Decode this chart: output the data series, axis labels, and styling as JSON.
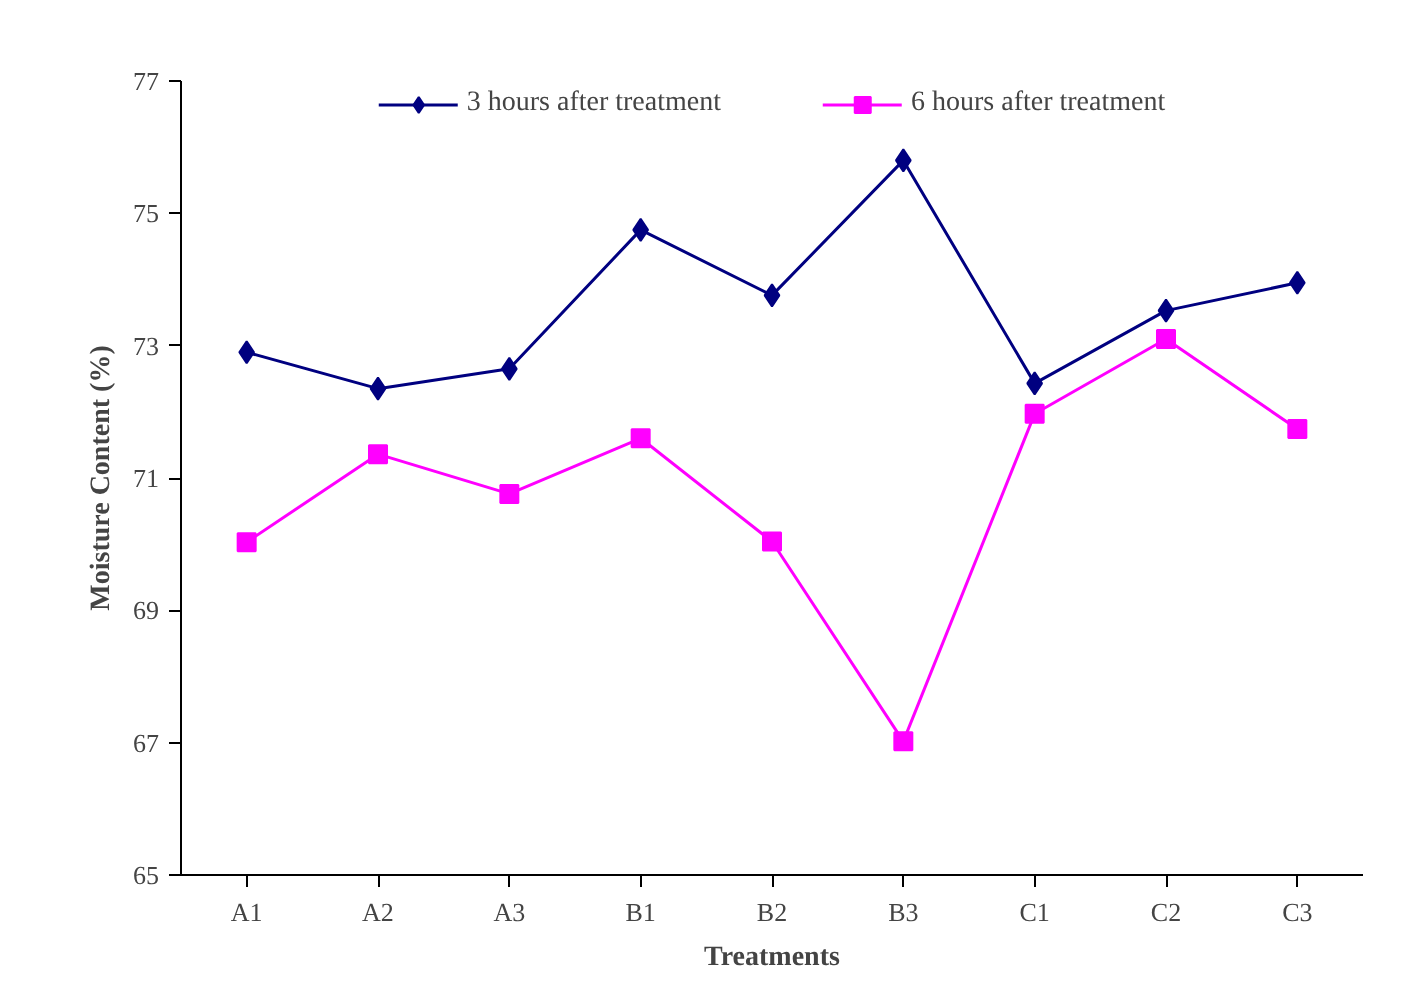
{
  "chart_data": {
    "type": "line",
    "xlabel": "Treatments",
    "ylabel": "Moisture Content (%)",
    "categories": [
      "A1",
      "A2",
      "A3",
      "B1",
      "B2",
      "B3",
      "C1",
      "C2",
      "C3"
    ],
    "series": [
      {
        "name": "3 hours after treatment",
        "color": "#000080",
        "marker": "diamond",
        "values": [
          72.9,
          72.35,
          72.65,
          74.75,
          73.76,
          75.8,
          72.43,
          73.53,
          73.95
        ]
      },
      {
        "name": "6 hours after treatment",
        "color": "#ff00ff",
        "marker": "square",
        "values": [
          70.03,
          71.36,
          70.76,
          71.6,
          70.04,
          67.02,
          71.97,
          73.1,
          71.74
        ]
      }
    ],
    "ylim": [
      65,
      77
    ],
    "yticks": [
      65,
      67,
      69,
      71,
      73,
      75,
      77
    ],
    "grid": false,
    "legend": "top"
  }
}
